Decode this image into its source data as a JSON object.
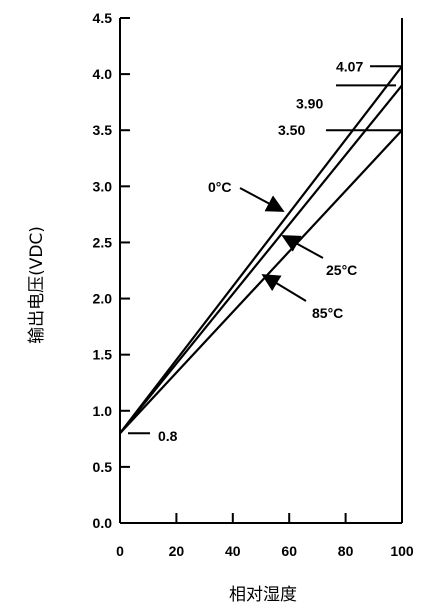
{
  "chart_data": {
    "type": "line",
    "xlabel": "相对湿度",
    "ylabel": "输出电压(VDC)",
    "xlim": [
      0,
      100
    ],
    "ylim": [
      0,
      4.5
    ],
    "x_ticks": [
      "0",
      "20",
      "40",
      "60",
      "80",
      "100"
    ],
    "y_ticks": [
      "0.0",
      "0.5",
      "1.0",
      "1.5",
      "2.0",
      "2.5",
      "3.0",
      "3.5",
      "4.0",
      "4.5"
    ],
    "grid": false,
    "series": [
      {
        "name": "0°C",
        "x": [
          0,
          100
        ],
        "y": [
          0.8,
          4.07
        ]
      },
      {
        "name": "25°C",
        "x": [
          0,
          100
        ],
        "y": [
          0.8,
          3.9
        ]
      },
      {
        "name": "85°C",
        "x": [
          0,
          100
        ],
        "y": [
          0.8,
          3.5
        ]
      }
    ],
    "annotations": [
      {
        "text": "0.8",
        "x": 0,
        "y": 0.8
      },
      {
        "text": "4.07",
        "x": 100,
        "y": 4.07
      },
      {
        "text": "3.90",
        "x": 100,
        "y": 3.9
      },
      {
        "text": "3.50",
        "x": 100,
        "y": 3.5
      }
    ]
  }
}
